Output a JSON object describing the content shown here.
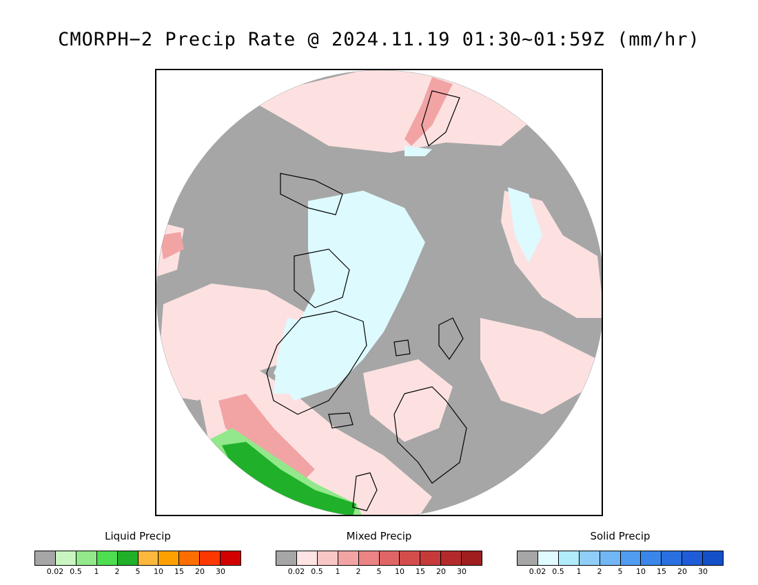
{
  "title": "CMORPH−2 Precip Rate @ 2024.11.19 01:30~01:59Z (mm/hr)",
  "legends": [
    {
      "title": "Liquid Precip",
      "colors": [
        "#a6a6a6",
        "#c8f5c0",
        "#92e88a",
        "#4ede50",
        "#20b02a",
        "#fcb83c",
        "#fca000",
        "#fc6e00",
        "#fc3800",
        "#d20000"
      ],
      "ticks": [
        "0.02",
        "0.5",
        "1",
        "2",
        "5",
        "10",
        "15",
        "20",
        "30"
      ]
    },
    {
      "title": "Mixed Precip",
      "colors": [
        "#a6a6a6",
        "#fde3e3",
        "#f9c6c6",
        "#f2a4a4",
        "#eb8484",
        "#e06666",
        "#d44d4d",
        "#c63a3a",
        "#b42a2a",
        "#a01e1e"
      ],
      "ticks": [
        "0.02",
        "0.5",
        "1",
        "2",
        "5",
        "10",
        "15",
        "20",
        "30"
      ]
    },
    {
      "title": "Solid Precip",
      "colors": [
        "#a6a6a6",
        "#e0fbff",
        "#b0ecfa",
        "#90cdf8",
        "#72b6f4",
        "#509cf0",
        "#3a86ea",
        "#2a70e0",
        "#1e5cd8",
        "#1450c8"
      ],
      "ticks": [
        "0.02",
        "0.5",
        "1",
        "2",
        "5",
        "10",
        "15",
        "20",
        "30"
      ]
    }
  ],
  "map": {
    "colors": {
      "no_precip": "#a6a6a6",
      "mixed_light": "#fde1e1",
      "mixed_moderate": "#f2a4a4",
      "mixed_heavy": "#e06666",
      "solid_light": "#ddfaff",
      "liquid_light": "#92e88a",
      "liquid_moderate": "#4ede50",
      "liquid_heavy": "#20b02a",
      "coastline": "#000000"
    }
  }
}
